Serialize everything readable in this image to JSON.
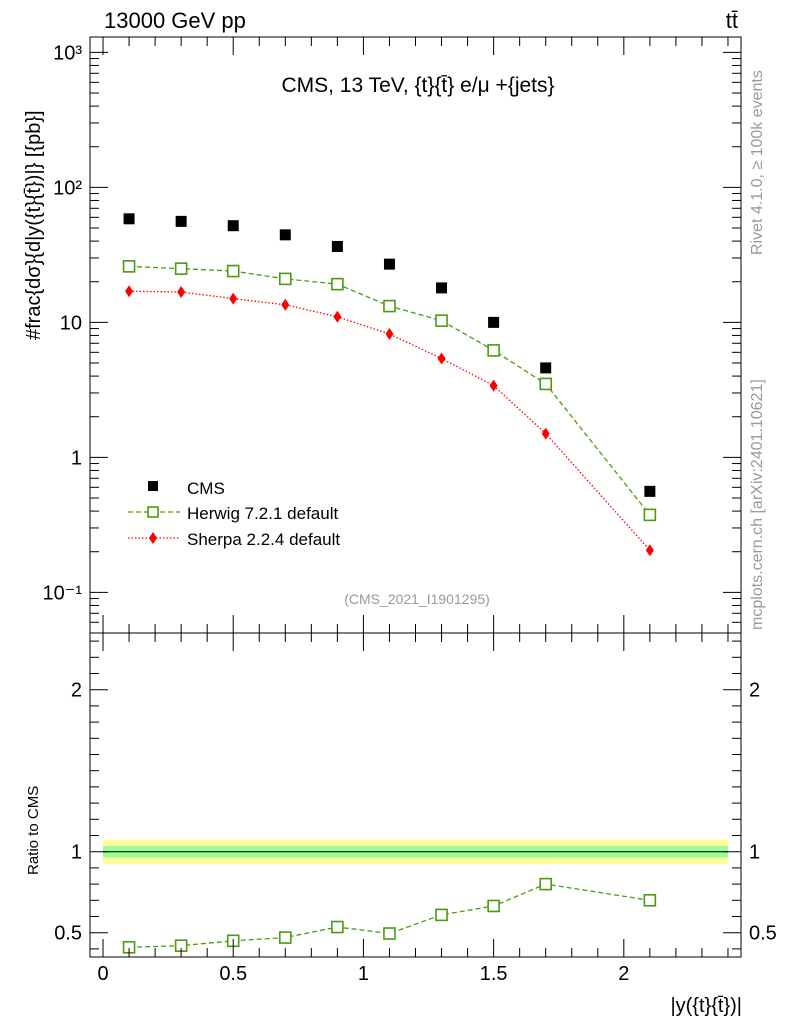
{
  "header": {
    "beam_label": "13000 GeV pp",
    "process_label": "tt̄",
    "title": "CMS, 13 TeV, {t}{t̄} e/μ +{jets}",
    "analysis_id": "(CMS_2021_I1901295)",
    "side_rivet": "Rivet 4.1.0, ≥ 100k events",
    "side_site": "mcplots.cern.ch [arXiv:2401.10621]"
  },
  "colors": {
    "data": "#000000",
    "herwig": "#4a9c0e",
    "sherpa": "#ff0000",
    "band_outer": "#ffff99",
    "band_inner": "#99ff99"
  },
  "chart_data": [
    {
      "type": "scatter",
      "title": "CMS, 13 TeV, {t}{t̄} e/μ +{jets}",
      "ylabel": "#frac{dσ}{d|y({t}{t̄})|} [{pb}]",
      "xlabel": "",
      "yscale": "log",
      "ylim": [
        0.05,
        1300
      ],
      "xlim": [
        -0.05,
        2.45
      ],
      "y_ticks": [
        "10⁻¹",
        "1",
        "10",
        "10²",
        "10³"
      ],
      "legend": [
        "CMS",
        "Herwig 7.2.1 default",
        "Sherpa 2.2.4 default"
      ],
      "legend_position": "bottom-left",
      "x": [
        0.1,
        0.3,
        0.5,
        0.7,
        0.9,
        1.1,
        1.3,
        1.5,
        1.7,
        2.1
      ],
      "series": [
        {
          "name": "CMS",
          "values": [
            58.5,
            56,
            52,
            44.5,
            36.5,
            27,
            18,
            10,
            4.6,
            0.56
          ]
        },
        {
          "name": "Herwig 7.2.1 default",
          "values": [
            26,
            25,
            24,
            21,
            19.2,
            13.2,
            10.3,
            6.2,
            3.5,
            0.375
          ]
        },
        {
          "name": "Sherpa 2.2.4 default",
          "values": [
            17,
            16.8,
            15,
            13.5,
            11,
            8.2,
            5.4,
            3.4,
            1.5,
            0.205
          ]
        }
      ]
    },
    {
      "type": "line",
      "ylabel": "Ratio to CMS",
      "xlabel": "|y({t}{t̄})|",
      "ylim": [
        0.35,
        2.35
      ],
      "xlim": [
        -0.05,
        2.45
      ],
      "x_ticks": [
        "0",
        "0.5",
        "1",
        "1.5",
        "2"
      ],
      "y_ticks": [
        "0.5",
        "1",
        "2"
      ],
      "x": [
        0.1,
        0.3,
        0.5,
        0.7,
        0.9,
        1.1,
        1.3,
        1.5,
        1.7,
        2.1
      ],
      "series": [
        {
          "name": "Herwig 7.2.1 default",
          "values": [
            0.41,
            0.42,
            0.45,
            0.47,
            0.535,
            0.495,
            0.61,
            0.665,
            0.8,
            0.7
          ]
        }
      ],
      "band": {
        "name": "CMS uncertainty",
        "inner": 0.035,
        "outer": 0.075
      }
    }
  ]
}
